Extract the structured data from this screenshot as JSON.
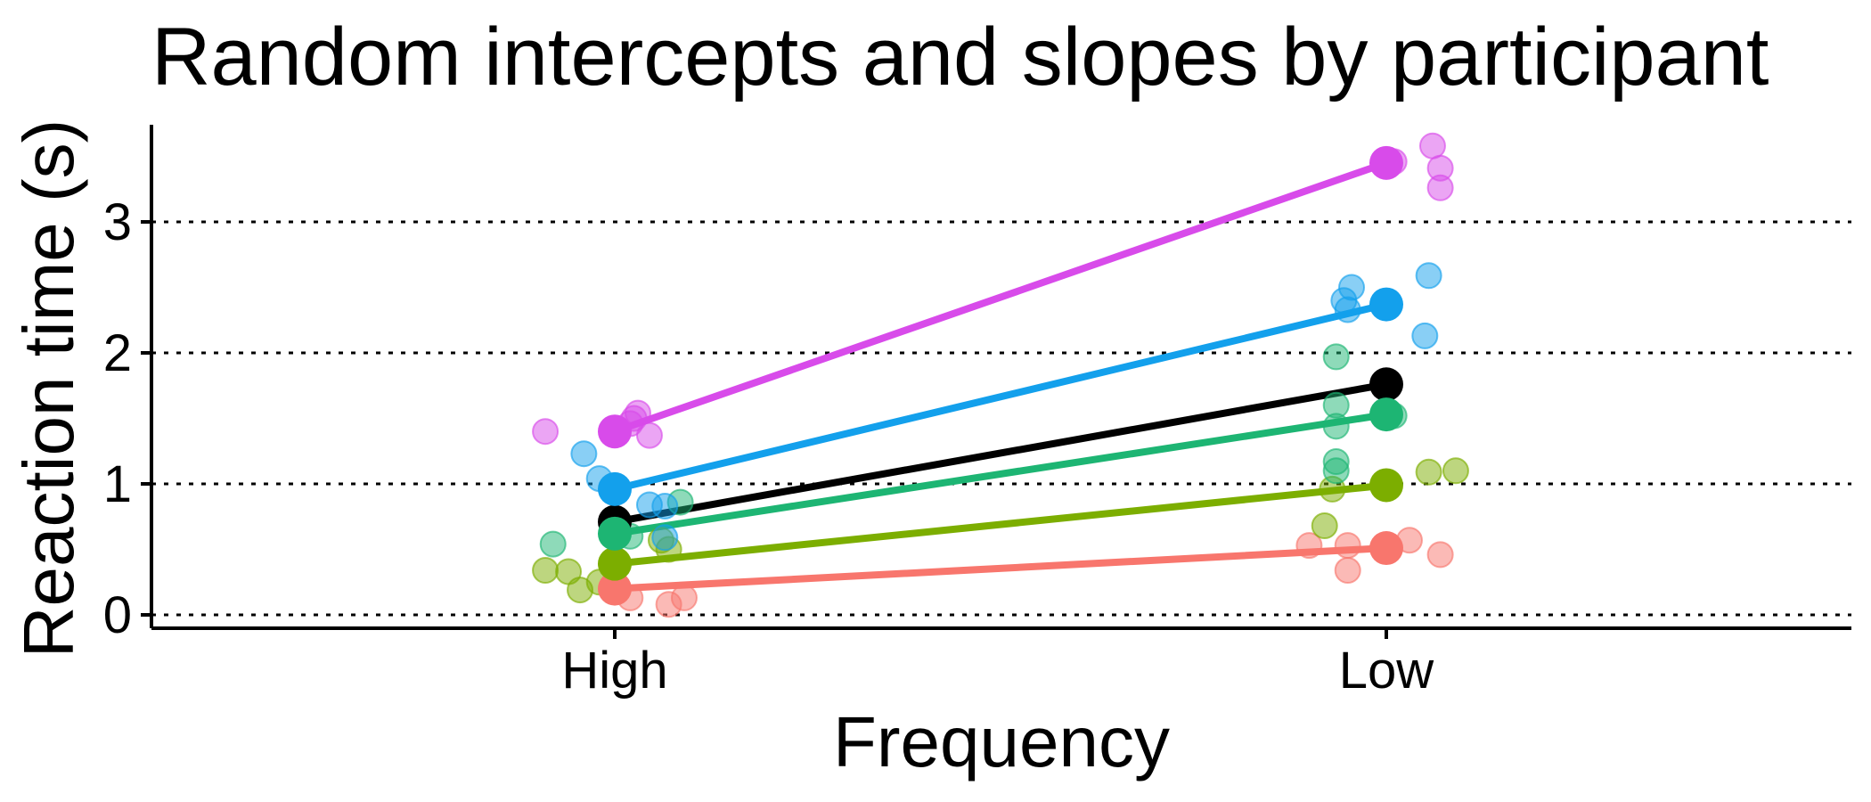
{
  "chart_data": {
    "type": "scatter",
    "title": "Random intercepts and slopes by participant",
    "xlabel": "Frequency",
    "ylabel": "Reaction time (s)",
    "categories": [
      "High",
      "Low"
    ],
    "ylim": [
      -0.08,
      3.8
    ],
    "yticks": [
      0,
      1,
      2,
      3
    ],
    "grid": true,
    "legend": "none",
    "fixed_effect_line": {
      "color": "#000000",
      "values": [
        0.71,
        1.76
      ]
    },
    "series": [
      {
        "color": "#F8766D",
        "means": [
          0.2,
          0.51
        ],
        "points": [
          {
            "category": "High",
            "offset": 0.02,
            "value": 0.13
          },
          {
            "category": "High",
            "offset": 0.07,
            "value": 0.08
          },
          {
            "category": "High",
            "offset": 0.09,
            "value": 0.13
          },
          {
            "category": "High",
            "offset": 0.0,
            "value": 0.22
          },
          {
            "category": "Low",
            "offset": -0.1,
            "value": 0.53
          },
          {
            "category": "Low",
            "offset": -0.05,
            "value": 0.53
          },
          {
            "category": "Low",
            "offset": -0.05,
            "value": 0.34
          },
          {
            "category": "Low",
            "offset": 0.03,
            "value": 0.57
          },
          {
            "category": "Low",
            "offset": 0.07,
            "value": 0.46
          }
        ]
      },
      {
        "color": "#7CAE00",
        "means": [
          0.39,
          0.99
        ],
        "points": [
          {
            "category": "High",
            "offset": -0.09,
            "value": 0.34
          },
          {
            "category": "High",
            "offset": -0.06,
            "value": 0.33
          },
          {
            "category": "High",
            "offset": -0.045,
            "value": 0.19
          },
          {
            "category": "High",
            "offset": -0.02,
            "value": 0.25
          },
          {
            "category": "High",
            "offset": 0.06,
            "value": 0.57
          },
          {
            "category": "High",
            "offset": 0.07,
            "value": 0.5
          },
          {
            "category": "Low",
            "offset": -0.08,
            "value": 0.68
          },
          {
            "category": "Low",
            "offset": -0.07,
            "value": 0.96
          },
          {
            "category": "Low",
            "offset": 0.055,
            "value": 1.09
          },
          {
            "category": "Low",
            "offset": 0.09,
            "value": 1.1
          }
        ]
      },
      {
        "color": "#1DB573",
        "means": [
          0.62,
          1.53
        ],
        "points": [
          {
            "category": "High",
            "offset": -0.08,
            "value": 0.54
          },
          {
            "category": "High",
            "offset": 0.02,
            "value": 0.6
          },
          {
            "category": "High",
            "offset": 0.085,
            "value": 0.86
          },
          {
            "category": "Low",
            "offset": -0.065,
            "value": 1.97
          },
          {
            "category": "Low",
            "offset": -0.065,
            "value": 1.6
          },
          {
            "category": "Low",
            "offset": -0.065,
            "value": 1.44
          },
          {
            "category": "Low",
            "offset": -0.065,
            "value": 1.17
          },
          {
            "category": "Low",
            "offset": -0.065,
            "value": 1.1
          },
          {
            "category": "Low",
            "offset": 0.01,
            "value": 1.52
          }
        ]
      },
      {
        "color": "#13A0EC",
        "means": [
          0.96,
          2.37
        ],
        "points": [
          {
            "category": "High",
            "offset": -0.04,
            "value": 1.23
          },
          {
            "category": "High",
            "offset": -0.02,
            "value": 1.04
          },
          {
            "category": "High",
            "offset": 0.045,
            "value": 0.84
          },
          {
            "category": "High",
            "offset": 0.065,
            "value": 0.83
          },
          {
            "category": "High",
            "offset": 0.065,
            "value": 0.59
          },
          {
            "category": "Low",
            "offset": -0.055,
            "value": 2.4
          },
          {
            "category": "Low",
            "offset": -0.05,
            "value": 2.33
          },
          {
            "category": "Low",
            "offset": -0.045,
            "value": 2.5
          },
          {
            "category": "Low",
            "offset": 0.05,
            "value": 2.13
          },
          {
            "category": "Low",
            "offset": 0.055,
            "value": 2.59
          }
        ]
      },
      {
        "color": "#D84BEA",
        "means": [
          1.4,
          3.45
        ],
        "points": [
          {
            "category": "High",
            "offset": -0.09,
            "value": 1.4
          },
          {
            "category": "High",
            "offset": 0.02,
            "value": 1.46
          },
          {
            "category": "High",
            "offset": 0.025,
            "value": 1.5
          },
          {
            "category": "High",
            "offset": 0.03,
            "value": 1.54
          },
          {
            "category": "High",
            "offset": 0.045,
            "value": 1.37
          },
          {
            "category": "Low",
            "offset": 0.01,
            "value": 3.46
          },
          {
            "category": "Low",
            "offset": 0.06,
            "value": 3.58
          },
          {
            "category": "Low",
            "offset": 0.07,
            "value": 3.41
          },
          {
            "category": "Low",
            "offset": 0.07,
            "value": 3.26
          }
        ]
      }
    ]
  }
}
